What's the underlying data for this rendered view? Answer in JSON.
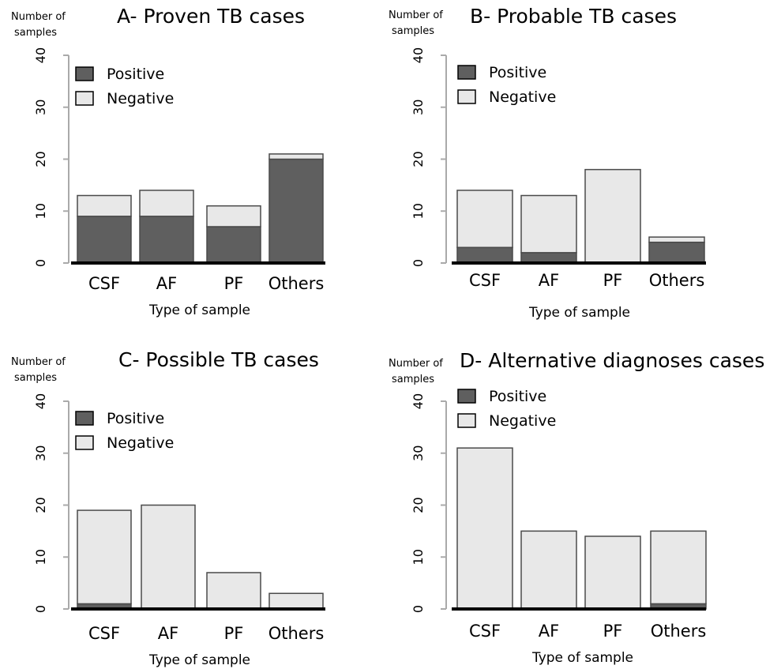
{
  "colors": {
    "positive": "#5f5f5f",
    "negative": "#e8e8e8",
    "bar_stroke": "#4a4a4a",
    "axis": "#000000",
    "axis_grey": "#aaaaaa"
  },
  "chart_data": [
    {
      "type": "bar",
      "stacked": true,
      "title": "A- Proven TB cases",
      "ylabel": "Number of samples",
      "xlabel": "Type of sample",
      "categories": [
        "CSF",
        "AF",
        "PF",
        "Others"
      ],
      "series": [
        {
          "name": "Positive",
          "values": [
            9,
            9,
            7,
            20
          ]
        },
        {
          "name": "Negative",
          "values": [
            4,
            5,
            4,
            1
          ]
        }
      ],
      "ylim": [
        0,
        40
      ],
      "yticks": [
        "0",
        "10",
        "20",
        "30",
        "40"
      ],
      "legend": "top-left",
      "grid": false
    },
    {
      "type": "bar",
      "stacked": true,
      "title": "B- Probable TB cases",
      "ylabel": "Number of samples",
      "xlabel": "Type of sample",
      "categories": [
        "CSF",
        "AF",
        "PF",
        "Others"
      ],
      "series": [
        {
          "name": "Positive",
          "values": [
            3,
            2,
            0,
            4
          ]
        },
        {
          "name": "Negative",
          "values": [
            11,
            11,
            18,
            1
          ]
        }
      ],
      "ylim": [
        0,
        40
      ],
      "yticks": [
        "0",
        "10",
        "20",
        "30",
        "40"
      ],
      "legend": "top-left",
      "grid": false
    },
    {
      "type": "bar",
      "stacked": true,
      "title": "C- Possible TB cases",
      "ylabel": "Number of samples",
      "xlabel": "Type of sample",
      "categories": [
        "CSF",
        "AF",
        "PF",
        "Others"
      ],
      "series": [
        {
          "name": "Positive",
          "values": [
            1,
            0,
            0,
            0
          ]
        },
        {
          "name": "Negative",
          "values": [
            18,
            20,
            7,
            3
          ]
        }
      ],
      "ylim": [
        0,
        40
      ],
      "yticks": [
        "0",
        "10",
        "20",
        "30",
        "40"
      ],
      "legend": "top-left",
      "grid": false
    },
    {
      "type": "bar",
      "stacked": true,
      "title": "D- Alternative diagnoses cases",
      "ylabel": "Number of samples",
      "xlabel": "Type of sample",
      "categories": [
        "CSF",
        "AF",
        "PF",
        "Others"
      ],
      "series": [
        {
          "name": "Positive",
          "values": [
            0,
            0,
            0,
            1
          ]
        },
        {
          "name": "Negative",
          "values": [
            31,
            15,
            14,
            14
          ]
        }
      ],
      "ylim": [
        0,
        40
      ],
      "yticks": [
        "0",
        "10",
        "20",
        "30",
        "40"
      ],
      "legend": "top-left",
      "grid": false
    }
  ]
}
